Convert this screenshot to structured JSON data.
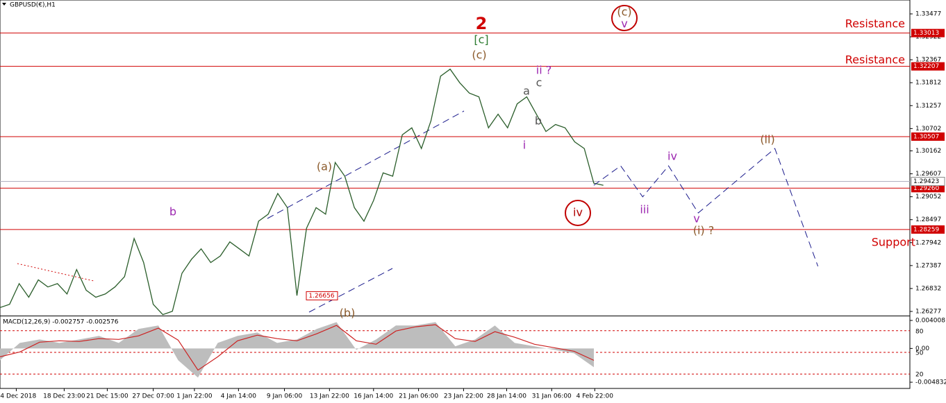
{
  "chart_data": {
    "type": "line",
    "title": "GBPUSD(€),H1",
    "ylim": [
      1.26176,
      1.33813
    ],
    "yticks": [
      1.33477,
      1.32922,
      1.32367,
      1.31812,
      1.31257,
      1.30702,
      1.30162,
      1.29607,
      1.29052,
      1.28497,
      1.27942,
      1.27387,
      1.26832,
      1.26277
    ],
    "xticks": [
      {
        "value": 1.7,
        "label": "14 Dec 2018"
      },
      {
        "value": 6.7,
        "label": "18 Dec 23:00"
      },
      {
        "value": 11.2,
        "label": "21 Dec 15:00"
      },
      {
        "value": 16,
        "label": "27 Dec 07:00"
      },
      {
        "value": 20.3,
        "label": "1 Jan 22:00"
      },
      {
        "value": 24.9,
        "label": "4 Jan 14:00"
      },
      {
        "value": 29.7,
        "label": "9 Jan 06:00"
      },
      {
        "value": 34.4,
        "label": "13 Jan 22:00"
      },
      {
        "value": 39,
        "label": "16 Jan 14:00"
      },
      {
        "value": 43.7,
        "label": "21 Jan 06:00"
      },
      {
        "value": 48.4,
        "label": "23 Jan 22:00"
      },
      {
        "value": 52.9,
        "label": "28 Jan 14:00"
      },
      {
        "value": 57.6,
        "label": "31 Jan 06:00"
      },
      {
        "value": 62.1,
        "label": "4 Feb 22:00"
      }
    ],
    "xlim": [
      0,
      95
    ],
    "price": {
      "color": "#2a5d2a",
      "values": [
        1.2637,
        1.2645,
        1.2695,
        1.2662,
        1.2704,
        1.2687,
        1.2695,
        1.267,
        1.2729,
        1.2679,
        1.2662,
        1.267,
        1.2687,
        1.2712,
        1.2804,
        1.2746,
        1.2645,
        1.262,
        1.2628,
        1.272,
        1.2754,
        1.2779,
        1.2746,
        1.2762,
        1.2796,
        1.2779,
        1.2762,
        1.2846,
        1.2863,
        1.2913,
        1.2879,
        1.2666,
        1.2829,
        1.2879,
        1.2863,
        1.2988,
        1.2955,
        1.2879,
        1.2846,
        1.2896,
        1.2963,
        1.2955,
        1.3055,
        1.3072,
        1.3022,
        1.3089,
        1.3197,
        1.3214,
        1.3181,
        1.3156,
        1.3147,
        1.3072,
        1.3105,
        1.3072,
        1.313,
        1.3147,
        1.3105,
        1.3063,
        1.308,
        1.3072,
        1.3038,
        1.3022,
        1.2938,
        1.2933
      ]
    },
    "projection": {
      "color": "#1a1a8c",
      "x": [
        62,
        64.8,
        67.1,
        69.8,
        72.9,
        80.9,
        85.4
      ],
      "values": [
        1.2933,
        1.298,
        1.2905,
        1.298,
        1.2866,
        1.3022,
        1.2737
      ]
    },
    "levels": [
      {
        "value": 1.33013,
        "label": "1.33013",
        "text": "Resistance"
      },
      {
        "value": 1.32207,
        "label": "1.32207",
        "text": "Resistance"
      },
      {
        "value": 1.30507,
        "label": "1.30507"
      },
      {
        "value": 1.2926,
        "label": "1.29260"
      },
      {
        "value": 1.28259,
        "label": "1.28259",
        "text": "Support"
      }
    ],
    "current_price": {
      "value": 1.29423,
      "label": "1.29423"
    },
    "low_marker": {
      "value": 1.26656,
      "label": "1.26656"
    },
    "annotations": [
      {
        "text": "2",
        "color": "#d00000"
      },
      {
        "text": "[c]",
        "color": "#2e7d32"
      },
      {
        "text": "(c)",
        "color": "#8b5a2b"
      },
      {
        "text": "ii ?",
        "color": "#9c27b0"
      },
      {
        "text": "a",
        "color": "#555555"
      },
      {
        "text": "c",
        "color": "#555555"
      },
      {
        "text": "b",
        "color": "#555555"
      },
      {
        "text": "i",
        "color": "#9c27b0"
      },
      {
        "text": "(a)",
        "color": "#8b5a2b"
      },
      {
        "text": "b",
        "color": "#9c27b0"
      },
      {
        "text": "(b)",
        "color": "#8b5a2b"
      },
      {
        "text": "(c)",
        "color": "#8b5a2b",
        "circled": true
      },
      {
        "text": "v",
        "color": "#9c27b0"
      },
      {
        "text": "iv",
        "color": "#9c27b0"
      },
      {
        "text": "iii",
        "color": "#9c27b0"
      },
      {
        "text": "iv",
        "color": "#b00000",
        "circled": true
      },
      {
        "text": "v",
        "color": "#9c27b0"
      },
      {
        "text": "(i) ?",
        "color": "#8b5a2b"
      },
      {
        "text": "(ii)",
        "color": "#8b5a2b"
      }
    ],
    "macd": {
      "label": "MACD(12,26,9) -0.002757 -0.002576",
      "ylim": [
        -0.00572,
        0.0046
      ],
      "yticks": [
        0.004008,
        {
          "value": 0,
          "label": "0.00"
        },
        -0.004832
      ],
      "y2lim": [
        0,
        100
      ],
      "y2ticks": [
        80,
        50,
        20
      ],
      "hist_color": "#bdbdbd",
      "hist": [
        -0.00169,
        0.00079,
        0.00129,
        0.00079,
        0.00129,
        0.00179,
        0.00079,
        0.00278,
        0.00328,
        -0.00169,
        -0.00417,
        0.00079,
        0.00179,
        0.00228,
        0.00079,
        0.00129,
        0.00278,
        0.00377,
        -0.0002,
        0.00129,
        0.00328,
        0.00328,
        0.00377,
        0.0003,
        0.00129,
        0.00328,
        0.00079,
        0.0003,
        -0.0002,
        -0.0007,
        -0.00268
      ],
      "signal_color": "#cc2222",
      "signal": [
        -0.0012,
        -0.0005,
        0.0009,
        0.0011,
        0.001,
        0.0014,
        0.0013,
        0.0018,
        0.0029,
        0.0012,
        -0.0031,
        -0.0012,
        0.0011,
        0.0019,
        0.0014,
        0.0011,
        0.0021,
        0.0033,
        0.0011,
        0.0006,
        0.0025,
        0.0031,
        0.0034,
        0.0014,
        0.001,
        0.0024,
        0.0016,
        0.0006,
        0.0001,
        -0.0004,
        -0.0017
      ]
    }
  }
}
